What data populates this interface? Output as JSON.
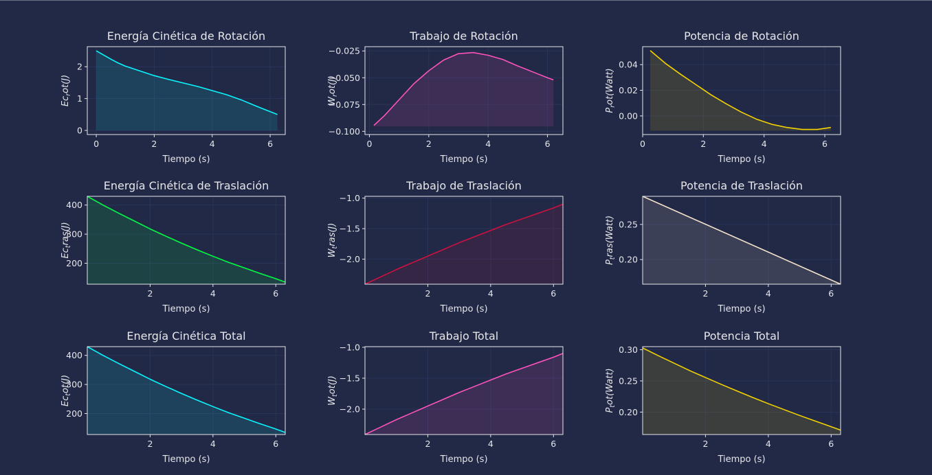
{
  "colors": {
    "background": "#212946",
    "grid": "#2A3459",
    "text": "#e6e6ea",
    "cyan": "#08F7FE",
    "magenta": "#FE53BB",
    "yellow": "#F5D300",
    "green": "#00ff41",
    "red": "#d01040",
    "cream": "#f6e3cc"
  },
  "chart_data": [
    {
      "type": "area",
      "title": "Energía Cinética de Rotación",
      "xlabel": "Tiempo (s)",
      "ylabel": "Ec_rot(J)",
      "xlim": [
        -0.31,
        6.52
      ],
      "ylim": [
        -0.13,
        2.63
      ],
      "xticks": [
        0,
        2,
        4,
        6
      ],
      "yticks": [
        0,
        1,
        2
      ],
      "color": "cyan",
      "fill_base": 0,
      "x": [
        0.0,
        0.25,
        0.5,
        0.75,
        1.0,
        1.5,
        2.0,
        2.5,
        3.0,
        3.5,
        4.0,
        4.5,
        5.0,
        5.5,
        6.0,
        6.25
      ],
      "y": [
        2.5,
        2.37,
        2.24,
        2.12,
        2.02,
        1.87,
        1.72,
        1.6,
        1.49,
        1.38,
        1.25,
        1.12,
        0.96,
        0.77,
        0.59,
        0.5
      ]
    },
    {
      "type": "area",
      "title": "Trabajo de Rotación",
      "xlabel": "Tiempo (s)",
      "ylabel": "W_rot(J)",
      "xlim": [
        -0.15,
        6.52
      ],
      "ylim": [
        -0.103,
        -0.021
      ],
      "xticks": [
        0,
        2,
        4,
        6
      ],
      "yticks": [
        -0.1,
        -0.075,
        -0.05,
        -0.025
      ],
      "ytick_labels": [
        "−0.100",
        "−0.075",
        "−0.050",
        "−0.025"
      ],
      "color": "magenta",
      "fill_base": -0.0955,
      "x": [
        0.15,
        0.5,
        1.0,
        1.5,
        2.0,
        2.5,
        3.0,
        3.5,
        4.0,
        4.5,
        5.0,
        5.5,
        6.0,
        6.2
      ],
      "y": [
        -0.0945,
        -0.0855,
        -0.0705,
        -0.0555,
        -0.0435,
        -0.0335,
        -0.0275,
        -0.0265,
        -0.029,
        -0.033,
        -0.039,
        -0.0445,
        -0.05,
        -0.052
      ]
    },
    {
      "type": "area",
      "title": "Potencia de Rotación",
      "xlabel": "Tiempo (s)",
      "ylabel": "P_rot(Watt)",
      "xlim": [
        0.0,
        6.52
      ],
      "ylim": [
        -0.0145,
        0.054
      ],
      "xticks": [
        0,
        2,
        4,
        6
      ],
      "yticks": [
        0.0,
        0.02,
        0.04
      ],
      "ytick_labels": [
        "0.00",
        "0.02",
        "0.04"
      ],
      "color": "yellow",
      "fill_base": -0.0115,
      "x": [
        0.25,
        0.75,
        1.25,
        1.75,
        2.25,
        2.75,
        3.25,
        3.75,
        4.25,
        4.75,
        5.25,
        5.75,
        6.2
      ],
      "y": [
        0.051,
        0.041,
        0.0325,
        0.0245,
        0.0165,
        0.0095,
        0.003,
        -0.0025,
        -0.0065,
        -0.009,
        -0.0105,
        -0.0105,
        -0.009
      ]
    },
    {
      "type": "area",
      "title": "Energía Cinética de Traslación",
      "xlabel": "Tiempo (s)",
      "ylabel": "Ec_tras(J)",
      "xlim": [
        0.0,
        6.3
      ],
      "ylim": [
        128,
        430
      ],
      "xticks": [
        2,
        4,
        6
      ],
      "yticks": [
        200,
        300,
        400
      ],
      "color": "green",
      "fill_base": 128,
      "x": [
        0.0,
        0.5,
        1.0,
        1.5,
        2.0,
        2.5,
        3.0,
        3.5,
        4.0,
        4.5,
        5.0,
        5.5,
        6.0,
        6.3
      ],
      "y": [
        430,
        400,
        372,
        345,
        318,
        293,
        269,
        246,
        224,
        203,
        184,
        165,
        147,
        135
      ]
    },
    {
      "type": "area",
      "title": "Trabajo de Traslación",
      "xlabel": "Tiempo (s)",
      "ylabel": "W_tras(J)",
      "xlim": [
        0.0,
        6.3
      ],
      "ylim": [
        -2.41,
        -0.97
      ],
      "xticks": [
        2,
        4,
        6
      ],
      "yticks": [
        -2.0,
        -1.5,
        -1.0
      ],
      "ytick_labels": [
        "−2.0",
        "−1.5",
        "−1.0"
      ],
      "color": "red",
      "fill_base": -2.41,
      "x": [
        0.0,
        0.5,
        1.0,
        1.5,
        2.0,
        2.5,
        3.0,
        3.5,
        4.0,
        4.5,
        5.0,
        5.5,
        6.0,
        6.3
      ],
      "y": [
        -2.41,
        -2.29,
        -2.17,
        -2.06,
        -1.95,
        -1.84,
        -1.73,
        -1.63,
        -1.53,
        -1.43,
        -1.34,
        -1.25,
        -1.16,
        -1.1
      ]
    },
    {
      "type": "area",
      "title": "Potencia de Traslación",
      "xlabel": "Tiempo (s)",
      "ylabel": "P_tras(Watt)",
      "xlim": [
        0.0,
        6.3
      ],
      "ylim": [
        0.165,
        0.29
      ],
      "xticks": [
        2,
        4,
        6
      ],
      "yticks": [
        0.2,
        0.25
      ],
      "ytick_labels": [
        "0.20",
        "0.25"
      ],
      "color": "cream",
      "fill_base": 0.165,
      "x": [
        0.0,
        6.3
      ],
      "y": [
        0.29,
        0.165
      ]
    },
    {
      "type": "area",
      "title": "Energía Cinética Total",
      "xlabel": "Tiempo (s)",
      "ylabel": "Ec_tot(J)",
      "xlim": [
        0.0,
        6.3
      ],
      "ylim": [
        128,
        430
      ],
      "xticks": [
        2,
        4,
        6
      ],
      "yticks": [
        200,
        300,
        400
      ],
      "color": "cyan",
      "fill_base": 128,
      "x": [
        0.0,
        0.5,
        1.0,
        1.5,
        2.0,
        2.5,
        3.0,
        3.5,
        4.0,
        4.5,
        5.0,
        5.5,
        6.0,
        6.3
      ],
      "y": [
        430,
        400,
        372,
        345,
        318,
        293,
        269,
        246,
        224,
        203,
        184,
        165,
        147,
        135
      ]
    },
    {
      "type": "area",
      "title": "Trabajo Total",
      "xlabel": "Tiempo (s)",
      "ylabel": "W_tot(J)",
      "xlim": [
        0.0,
        6.3
      ],
      "ylim": [
        -2.41,
        -0.99
      ],
      "xticks": [
        2,
        4,
        6
      ],
      "yticks": [
        -2.0,
        -1.5,
        -1.0
      ],
      "ytick_labels": [
        "−2.0",
        "−1.5",
        "−1.0"
      ],
      "color": "magenta",
      "fill_base": -2.41,
      "x": [
        0.0,
        0.5,
        1.0,
        1.5,
        2.0,
        2.5,
        3.0,
        3.5,
        4.0,
        4.5,
        5.0,
        5.5,
        6.0,
        6.3
      ],
      "y": [
        -2.41,
        -2.29,
        -2.17,
        -2.06,
        -1.95,
        -1.84,
        -1.73,
        -1.63,
        -1.53,
        -1.43,
        -1.34,
        -1.25,
        -1.16,
        -1.1
      ]
    },
    {
      "type": "area",
      "title": "Potencia Total",
      "xlabel": "Tiempo (s)",
      "ylabel": "P_tot(Watt)",
      "xlim": [
        0.0,
        6.3
      ],
      "ylim": [
        0.164,
        0.305
      ],
      "xticks": [
        2,
        4,
        6
      ],
      "yticks": [
        0.2,
        0.25,
        0.3
      ],
      "ytick_labels": [
        "0.20",
        "0.25",
        "0.30"
      ],
      "color": "yellow",
      "fill_base": 0.164,
      "x": [
        0.0,
        0.5,
        1.0,
        1.5,
        2.0,
        2.5,
        3.0,
        3.5,
        4.0,
        4.5,
        5.0,
        5.5,
        6.0,
        6.3
      ],
      "y": [
        0.303,
        0.2905,
        0.2785,
        0.2665,
        0.2555,
        0.2445,
        0.234,
        0.2235,
        0.2135,
        0.204,
        0.1945,
        0.1855,
        0.1765,
        0.171
      ]
    }
  ]
}
